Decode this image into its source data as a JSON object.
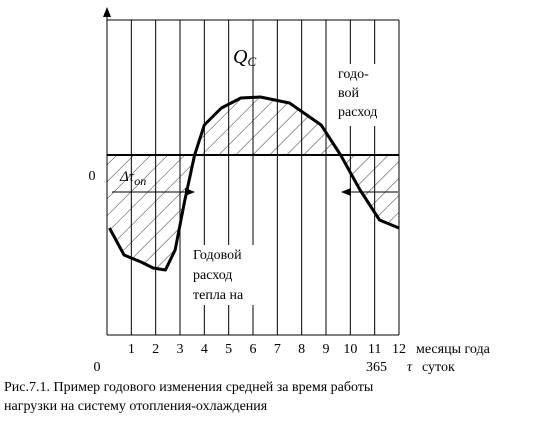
{
  "chart_data": {
    "type": "line",
    "x": [
      0.1,
      0.7,
      1.4,
      1.9,
      2.4,
      2.8,
      3.2,
      3.6,
      4.0,
      4.7,
      5.5,
      6.3,
      7.5,
      8.8,
      9.6,
      10.4,
      11.2,
      12
    ],
    "values": [
      -7.3,
      -10,
      -10.7,
      -11.3,
      -11.5,
      -9.5,
      -4.5,
      0,
      3,
      4.7,
      5.7,
      5.8,
      5.2,
      3,
      0,
      -3.5,
      -6.5,
      -7.3
    ],
    "color": "#000000",
    "xlim": [
      0,
      12
    ],
    "xticks": [
      0,
      1,
      2,
      3,
      4,
      5,
      6,
      7,
      8,
      9,
      10,
      11,
      12
    ],
    "ylim": [
      -18,
      13.5
    ],
    "yticks": [
      0
    ],
    "grid": true,
    "x_label": "месяцы года",
    "annotations": {
      "q_main": "Q",
      "q_sub": "C",
      "delta_main": "Δτ",
      "delta_sub": "оп",
      "annual_cool": [
        "годо-",
        "вой",
        "расход"
      ],
      "annual_heat": [
        "Годовой",
        "расход",
        "тепла на"
      ],
      "days_value": "365",
      "days_symbol": "τ",
      "days_unit": "суток"
    },
    "caption": [
      "Рис.7.1. Пример годового изменения средней за время работы",
      "нагрузки на систему отопления-охлаждения"
    ]
  }
}
